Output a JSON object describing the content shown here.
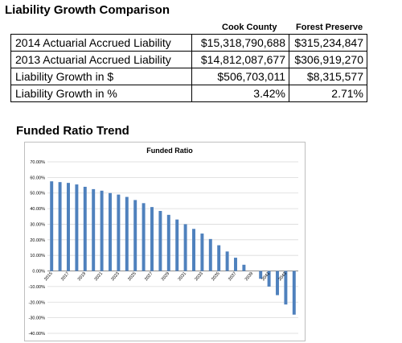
{
  "table": {
    "title": "Liability Growth Comparison",
    "columns": [
      "Cook County",
      "Forest Preserve"
    ],
    "rows": [
      {
        "label": "2014 Actuarial Accrued Liability",
        "cook": "$15,318,790,688",
        "forest": "$315,234,847"
      },
      {
        "label": "2013 Actuarial Accrued Liability",
        "cook": "$14,812,087,677",
        "forest": "$306,919,270"
      },
      {
        "label": "Liability Growth in $",
        "cook": "$506,703,011",
        "forest": "$8,315,577"
      },
      {
        "label": "Liability Growth in %",
        "cook": "3.42%",
        "forest": "2.71%"
      }
    ]
  },
  "section2": {
    "title": "Funded Ratio Trend"
  },
  "chart_data": {
    "type": "bar",
    "title": "Funded Ratio",
    "xlabel": "",
    "ylabel": "",
    "ylim": [
      -40,
      70
    ],
    "ytick_step": 10,
    "y_unit": "%",
    "grid": true,
    "legend": "none",
    "bar_color": "#4f81bd",
    "x": [
      2015,
      2016,
      2017,
      2018,
      2019,
      2020,
      2021,
      2022,
      2023,
      2024,
      2025,
      2026,
      2027,
      2028,
      2029,
      2030,
      2031,
      2032,
      2033,
      2034,
      2035,
      2036,
      2037,
      2038,
      2039,
      2040,
      2041,
      2042,
      2043,
      2044
    ],
    "tick_labels": [
      "2015",
      "2017",
      "2019",
      "2021",
      "2023",
      "2025",
      "2027",
      "2029",
      "2031",
      "2033",
      "2035",
      "2037",
      "2039",
      "2041",
      "2043"
    ],
    "values": [
      57.5,
      57,
      56.5,
      55.5,
      54,
      52.5,
      51.5,
      50,
      49,
      47.5,
      45.5,
      43.5,
      41,
      38.5,
      36,
      33,
      30,
      27,
      24,
      20.5,
      16.5,
      12.5,
      8.5,
      4,
      0,
      -5,
      -10,
      -15.5,
      -21.5,
      -28
    ]
  }
}
